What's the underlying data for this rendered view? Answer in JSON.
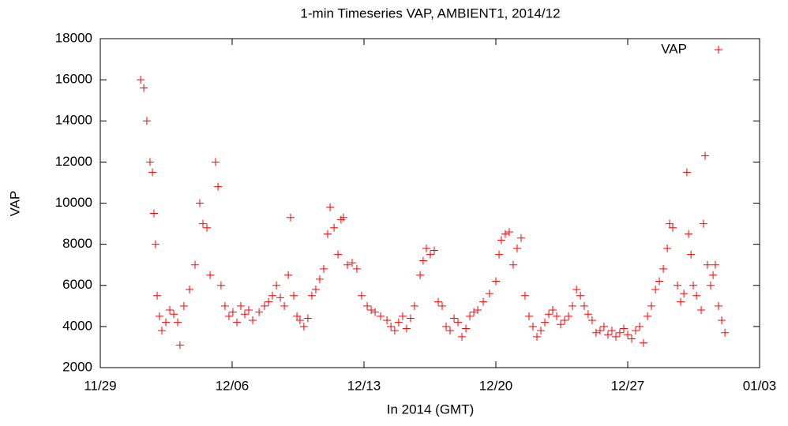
{
  "chart_data": {
    "type": "scatter",
    "title": "1-min Timeseries VAP, AMBIENT1, 2014/12",
    "x_label": "In 2014 (GMT)",
    "y_label": "VAP",
    "xlim": [
      0,
      35
    ],
    "xticks": [
      {
        "value": 0,
        "label": "11/29"
      },
      {
        "value": 7,
        "label": "12/06"
      },
      {
        "value": 14,
        "label": "12/13"
      },
      {
        "value": 21,
        "label": "12/20"
      },
      {
        "value": 28,
        "label": "12/27"
      },
      {
        "value": 35,
        "label": "01/03"
      }
    ],
    "ylim": [
      2000,
      18000
    ],
    "yticks": [
      2000,
      4000,
      6000,
      8000,
      10000,
      12000,
      14000,
      16000,
      18000
    ],
    "legend": "top-right",
    "x": [
      2.14,
      2.31,
      2.47,
      2.64,
      2.77,
      2.85,
      2.93,
      3.02,
      3.14,
      3.27,
      3.48,
      3.69,
      3.9,
      4.11,
      4.23,
      4.44,
      4.74,
      5.03,
      5.28,
      5.45,
      5.66,
      5.83,
      6.12,
      6.25,
      6.41,
      6.62,
      6.83,
      7.04,
      7.25,
      7.46,
      7.67,
      7.88,
      8.09,
      8.43,
      8.72,
      8.93,
      9.14,
      9.35,
      9.56,
      9.77,
      9.98,
      10.1,
      10.27,
      10.44,
      10.6,
      10.81,
      11.02,
      11.23,
      11.44,
      11.65,
      11.86,
      12.07,
      12.2,
      12.41,
      12.62,
      12.78,
      12.91,
      13.12,
      13.37,
      13.62,
      13.87,
      14.17,
      14.38,
      14.59,
      14.88,
      15.22,
      15.43,
      15.63,
      15.84,
      16.05,
      16.26,
      16.47,
      16.68,
      16.98,
      17.14,
      17.31,
      17.52,
      17.73,
      17.94,
      18.15,
      18.36,
      18.57,
      18.78,
      18.99,
      19.2,
      19.41,
      19.62,
      19.83,
      20.04,
      20.33,
      20.66,
      21.0,
      21.17,
      21.29,
      21.5,
      21.71,
      21.92,
      22.13,
      22.34,
      22.55,
      22.76,
      22.97,
      23.18,
      23.39,
      23.6,
      23.81,
      24.02,
      24.23,
      24.44,
      24.65,
      24.86,
      25.07,
      25.28,
      25.49,
      25.69,
      25.9,
      26.11,
      26.32,
      26.53,
      26.74,
      26.95,
      27.16,
      27.37,
      27.58,
      27.79,
      28.0,
      28.21,
      28.42,
      28.63,
      28.84,
      29.05,
      29.26,
      29.47,
      29.68,
      29.89,
      30.1,
      30.22,
      30.39,
      30.64,
      30.81,
      30.98,
      31.14,
      31.23,
      31.36,
      31.48,
      31.65,
      31.9,
      32.02,
      32.11,
      32.23,
      32.4,
      32.53,
      32.65,
      32.82,
      32.99,
      33.16
    ],
    "series": [
      {
        "name": "VAP",
        "color": "#ff0000",
        "values": [
          16000,
          15600,
          14000,
          12000,
          11500,
          9500,
          8000,
          5500,
          4500,
          3800,
          4200,
          4800,
          4600,
          4200,
          3100,
          5000,
          5800,
          7000,
          10000,
          9000,
          8800,
          6500,
          12000,
          10800,
          6000,
          5000,
          4500,
          4700,
          4200,
          5000,
          4600,
          4800,
          4300,
          4700,
          5000,
          5200,
          5500,
          6000,
          5400,
          5000,
          6500,
          9300,
          5500,
          4500,
          4300,
          4000,
          4400,
          5500,
          5800,
          6300,
          6800,
          8500,
          9800,
          8800,
          7500,
          9200,
          9300,
          7000,
          7100,
          6800,
          5500,
          5000,
          4800,
          4700,
          4500,
          4300,
          4000,
          3800,
          4200,
          4500,
          3900,
          4400,
          5000,
          6500,
          7200,
          7800,
          7500,
          7700,
          5200,
          5000,
          4000,
          3800,
          4400,
          4200,
          3500,
          3900,
          4500,
          4700,
          4800,
          5200,
          5600,
          6200,
          7500,
          8200,
          8500,
          8600,
          7000,
          7800,
          8300,
          5500,
          4500,
          4000,
          3500,
          3800,
          4200,
          4600,
          4800,
          4500,
          4100,
          4300,
          4500,
          5000,
          5800,
          5500,
          5000,
          4600,
          4300,
          3700,
          3800,
          4000,
          3600,
          3800,
          3500,
          3700,
          3900,
          3600,
          3400,
          3800,
          4000,
          3200,
          4500,
          5000,
          5800,
          6200,
          6800,
          7800,
          9000,
          8800,
          6000,
          5200,
          5600,
          11500,
          8500,
          7500,
          6000,
          5500,
          4800,
          9000,
          12300,
          7000,
          6000,
          6500,
          7000,
          5000,
          4300,
          3700
        ]
      }
    ]
  }
}
